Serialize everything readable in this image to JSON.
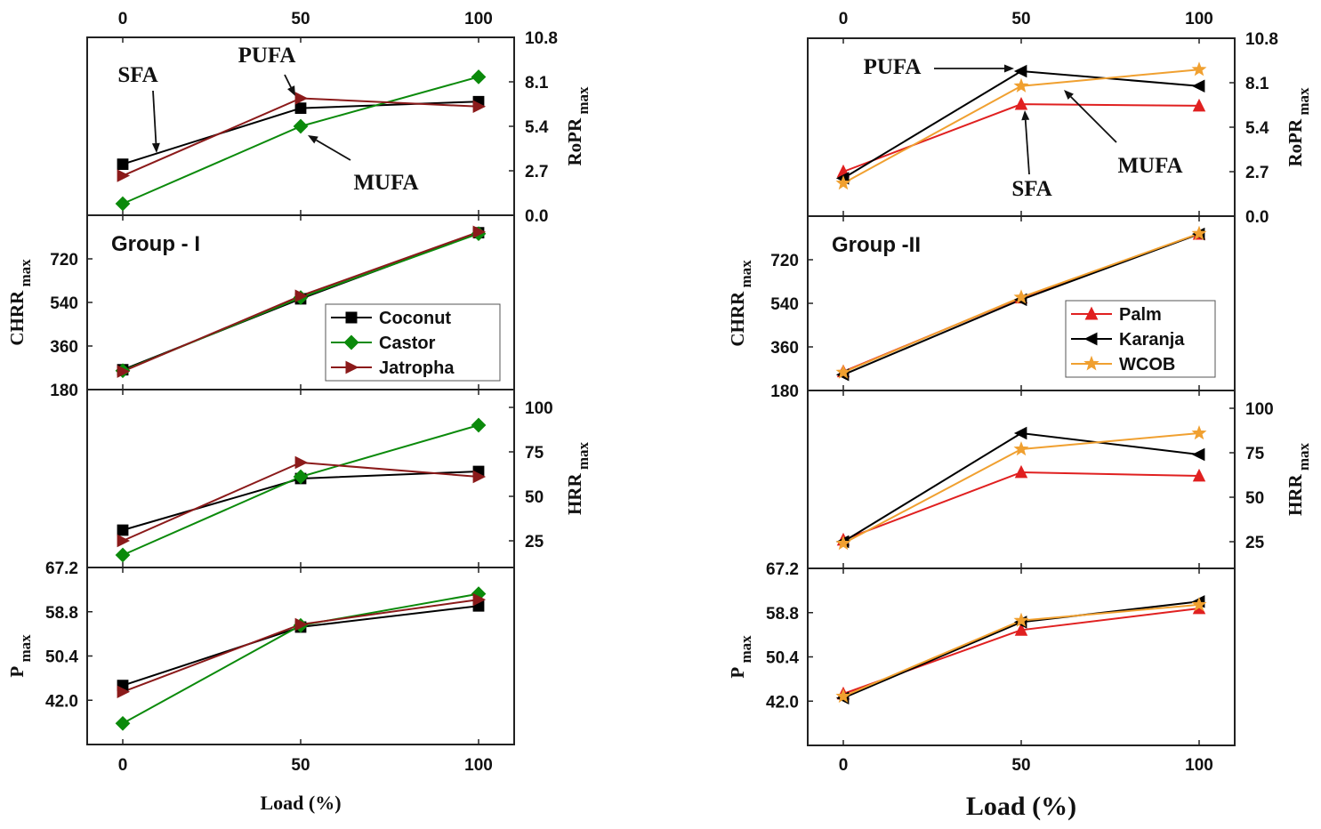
{
  "chart_data": [
    {
      "type": "line",
      "group_label": "Group - I",
      "xlabel": "Load (%)",
      "x": [
        0,
        50,
        100
      ],
      "x_ticks": [
        "0",
        "50",
        "100"
      ],
      "legend": {
        "placement": "center-right",
        "entries": [
          "Coconut",
          "Castor",
          "Jatropha"
        ]
      },
      "panels": [
        {
          "name": "RoPR",
          "label_main": "RoPR",
          "label_sub": "max",
          "axis_side": "right",
          "ylim": [
            0,
            10.8
          ],
          "ticks": [
            "0.0",
            "2.7",
            "5.4",
            "8.1",
            "10.8"
          ],
          "series": [
            {
              "name": "Coconut",
              "color": "#000000",
              "marker": "square",
              "values": [
                3.1,
                6.5,
                6.9
              ]
            },
            {
              "name": "Castor",
              "color": "#0b8a0b",
              "marker": "diamond",
              "values": [
                0.7,
                5.4,
                8.4
              ]
            },
            {
              "name": "Jatropha",
              "color": "#8b1a1a",
              "marker": "triangle-right",
              "values": [
                2.4,
                7.1,
                6.6
              ]
            }
          ],
          "annotations": [
            "SFA",
            "PUFA",
            "MUFA"
          ]
        },
        {
          "name": "CHRR",
          "label_main": "CHRR",
          "label_sub": "max",
          "axis_side": "left",
          "ylim": [
            180,
            900
          ],
          "ticks": [
            "180",
            "360",
            "540",
            "720"
          ],
          "series": [
            {
              "name": "Coconut",
              "color": "#000000",
              "marker": "square",
              "values": [
                262,
                555,
                828
              ]
            },
            {
              "name": "Castor",
              "color": "#0b8a0b",
              "marker": "diamond",
              "values": [
                258,
                560,
                824
              ]
            },
            {
              "name": "Jatropha",
              "color": "#8b1a1a",
              "marker": "triangle-right",
              "values": [
                255,
                567,
                831
              ]
            }
          ]
        },
        {
          "name": "HRR",
          "label_main": "HRR",
          "label_sub": "max",
          "axis_side": "right",
          "ylim": [
            10,
            110
          ],
          "ticks": [
            "25",
            "50",
            "75",
            "100"
          ],
          "series": [
            {
              "name": "Coconut",
              "color": "#000000",
              "marker": "square",
              "values": [
                31,
                60,
                64
              ]
            },
            {
              "name": "Castor",
              "color": "#0b8a0b",
              "marker": "diamond",
              "values": [
                17,
                61,
                90
              ]
            },
            {
              "name": "Jatropha",
              "color": "#8b1a1a",
              "marker": "triangle-right",
              "values": [
                25,
                69,
                61
              ]
            }
          ]
        },
        {
          "name": "P",
          "label_main": "P",
          "label_sub": "max",
          "axis_side": "left",
          "ylim": [
            33.6,
            67.2
          ],
          "ticks": [
            "42.0",
            "50.4",
            "58.8",
            "67.2"
          ],
          "series": [
            {
              "name": "Coconut",
              "color": "#000000",
              "marker": "square",
              "values": [
                44.8,
                55.9,
                59.9
              ]
            },
            {
              "name": "Castor",
              "color": "#0b8a0b",
              "marker": "diamond",
              "values": [
                37.6,
                56.2,
                62.2
              ]
            },
            {
              "name": "Jatropha",
              "color": "#8b1a1a",
              "marker": "triangle-right",
              "values": [
                43.6,
                56.4,
                61.1
              ]
            }
          ]
        }
      ]
    },
    {
      "type": "line",
      "group_label": "Group -II",
      "xlabel": "Load (%)",
      "x": [
        0,
        50,
        100
      ],
      "x_ticks": [
        "0",
        "50",
        "100"
      ],
      "legend": {
        "placement": "center-right",
        "entries": [
          "Palm",
          "Karanja",
          "WCOB"
        ]
      },
      "panels": [
        {
          "name": "RoPR",
          "label_main": "RoPR",
          "label_sub": "max",
          "axis_side": "right",
          "ylim": [
            0,
            10.8
          ],
          "ticks": [
            "0.0",
            "2.7",
            "5.4",
            "8.1",
            "10.8"
          ],
          "series": [
            {
              "name": "Palm",
              "color": "#e02020",
              "marker": "triangle-up",
              "values": [
                2.7,
                6.8,
                6.7
              ]
            },
            {
              "name": "Karanja",
              "color": "#000000",
              "marker": "triangle-left",
              "values": [
                2.3,
                8.8,
                7.9
              ]
            },
            {
              "name": "WCOB",
              "color": "#f0a030",
              "marker": "star",
              "values": [
                2.0,
                7.9,
                8.9
              ]
            }
          ],
          "annotations": [
            "PUFA",
            "SFA",
            "MUFA"
          ]
        },
        {
          "name": "CHRR",
          "label_main": "CHRR",
          "label_sub": "max",
          "axis_side": "left",
          "ylim": [
            180,
            900
          ],
          "ticks": [
            "180",
            "360",
            "540",
            "720"
          ],
          "series": [
            {
              "name": "Palm",
              "color": "#e02020",
              "marker": "triangle-up",
              "values": [
                258,
                563,
                826
              ]
            },
            {
              "name": "Karanja",
              "color": "#000000",
              "marker": "triangle-left",
              "values": [
                245,
                555,
                826
              ]
            },
            {
              "name": "WCOB",
              "color": "#f0a030",
              "marker": "star",
              "values": [
                255,
                565,
                828
              ]
            }
          ]
        },
        {
          "name": "HRR",
          "label_main": "HRR",
          "label_sub": "max",
          "axis_side": "right",
          "ylim": [
            10,
            110
          ],
          "ticks": [
            "25",
            "50",
            "75",
            "100"
          ],
          "series": [
            {
              "name": "Palm",
              "color": "#e02020",
              "marker": "triangle-up",
              "values": [
                26,
                64,
                62
              ]
            },
            {
              "name": "Karanja",
              "color": "#000000",
              "marker": "triangle-left",
              "values": [
                25,
                86,
                74
              ]
            },
            {
              "name": "WCOB",
              "color": "#f0a030",
              "marker": "star",
              "values": [
                24,
                77,
                86
              ]
            }
          ]
        },
        {
          "name": "P",
          "label_main": "P",
          "label_sub": "max",
          "axis_side": "left",
          "ylim": [
            33.6,
            67.2
          ],
          "ticks": [
            "42.0",
            "50.4",
            "58.8",
            "67.2"
          ],
          "series": [
            {
              "name": "Palm",
              "color": "#e02020",
              "marker": "triangle-up",
              "values": [
                43.4,
                55.5,
                59.6
              ]
            },
            {
              "name": "Karanja",
              "color": "#000000",
              "marker": "triangle-left",
              "values": [
                42.6,
                57.0,
                60.9
              ]
            },
            {
              "name": "WCOB",
              "color": "#f0a030",
              "marker": "star",
              "values": [
                42.9,
                57.3,
                60.3
              ]
            }
          ]
        }
      ]
    }
  ]
}
